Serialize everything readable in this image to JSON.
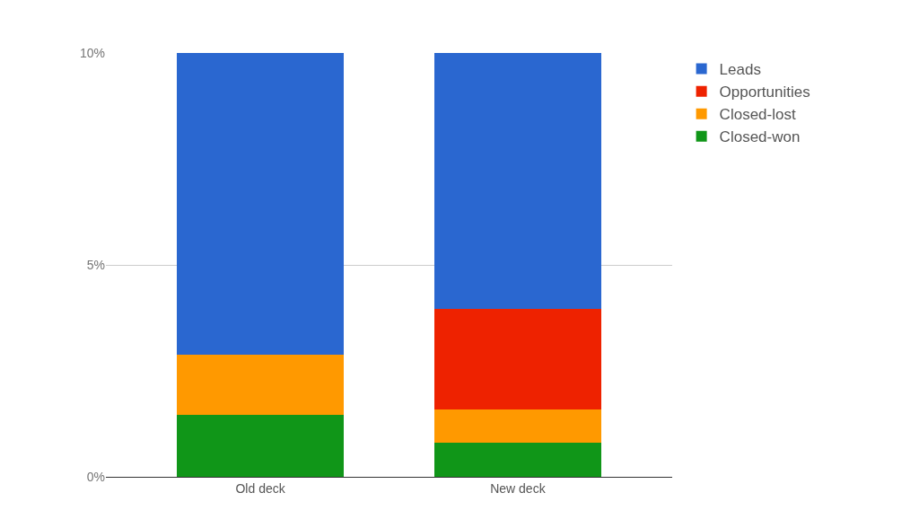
{
  "chart_data": {
    "type": "bar",
    "stacked": true,
    "categories": [
      "Old deck",
      "New deck"
    ],
    "series": [
      {
        "name": "Closed-won",
        "color": "#109618",
        "values": [
          1.46,
          0.8
        ]
      },
      {
        "name": "Closed-lost",
        "color": "#ff9900",
        "values": [
          1.42,
          0.79
        ]
      },
      {
        "name": "Opportunities",
        "color": "#ee2200",
        "values": [
          0,
          2.37
        ]
      },
      {
        "name": "Leads",
        "color": "#2a67d0",
        "values": [
          7.12,
          6.04
        ]
      }
    ],
    "ylim": [
      0,
      10
    ],
    "yticks": [
      {
        "value": 0,
        "label": "0%"
      },
      {
        "value": 5,
        "label": "5%"
      },
      {
        "value": 10,
        "label": "10%"
      }
    ],
    "grid": "y",
    "legend": "top right"
  }
}
